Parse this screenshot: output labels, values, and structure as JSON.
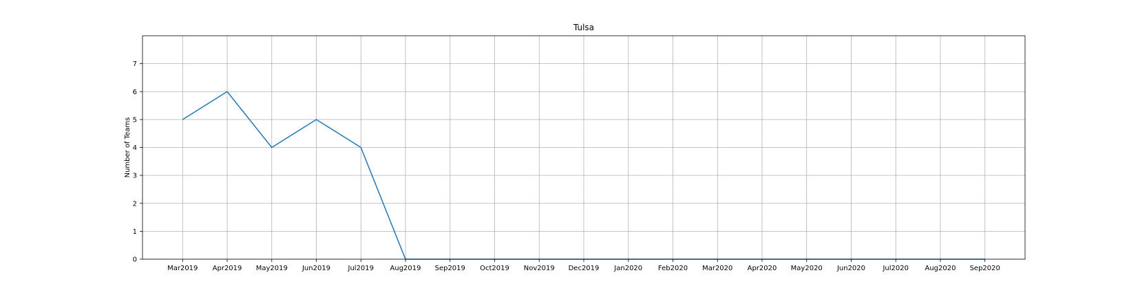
{
  "chart_data": {
    "type": "line",
    "title": "Tulsa",
    "xlabel": "",
    "ylabel": "Number of Teams",
    "categories": [
      "Mar2019",
      "Apr2019",
      "May2019",
      "Jun2019",
      "Jul2019",
      "Aug2019",
      "Sep2019",
      "Oct2019",
      "Nov2019",
      "Dec2019",
      "Jan2020",
      "Feb2020",
      "Mar2020",
      "Apr2020",
      "May2020",
      "Jun2020",
      "Jul2020",
      "Aug2020",
      "Sep2020"
    ],
    "series": [
      {
        "values": [
          5,
          6,
          4,
          5,
          4,
          0,
          0,
          0,
          0,
          0,
          0,
          0,
          0,
          0,
          0,
          0,
          0,
          0,
          0
        ],
        "color": "#1f77b4"
      }
    ],
    "yticks": [
      0,
      1,
      2,
      3,
      4,
      5,
      6,
      7
    ],
    "ylim": [
      0,
      8
    ],
    "grid": true
  }
}
